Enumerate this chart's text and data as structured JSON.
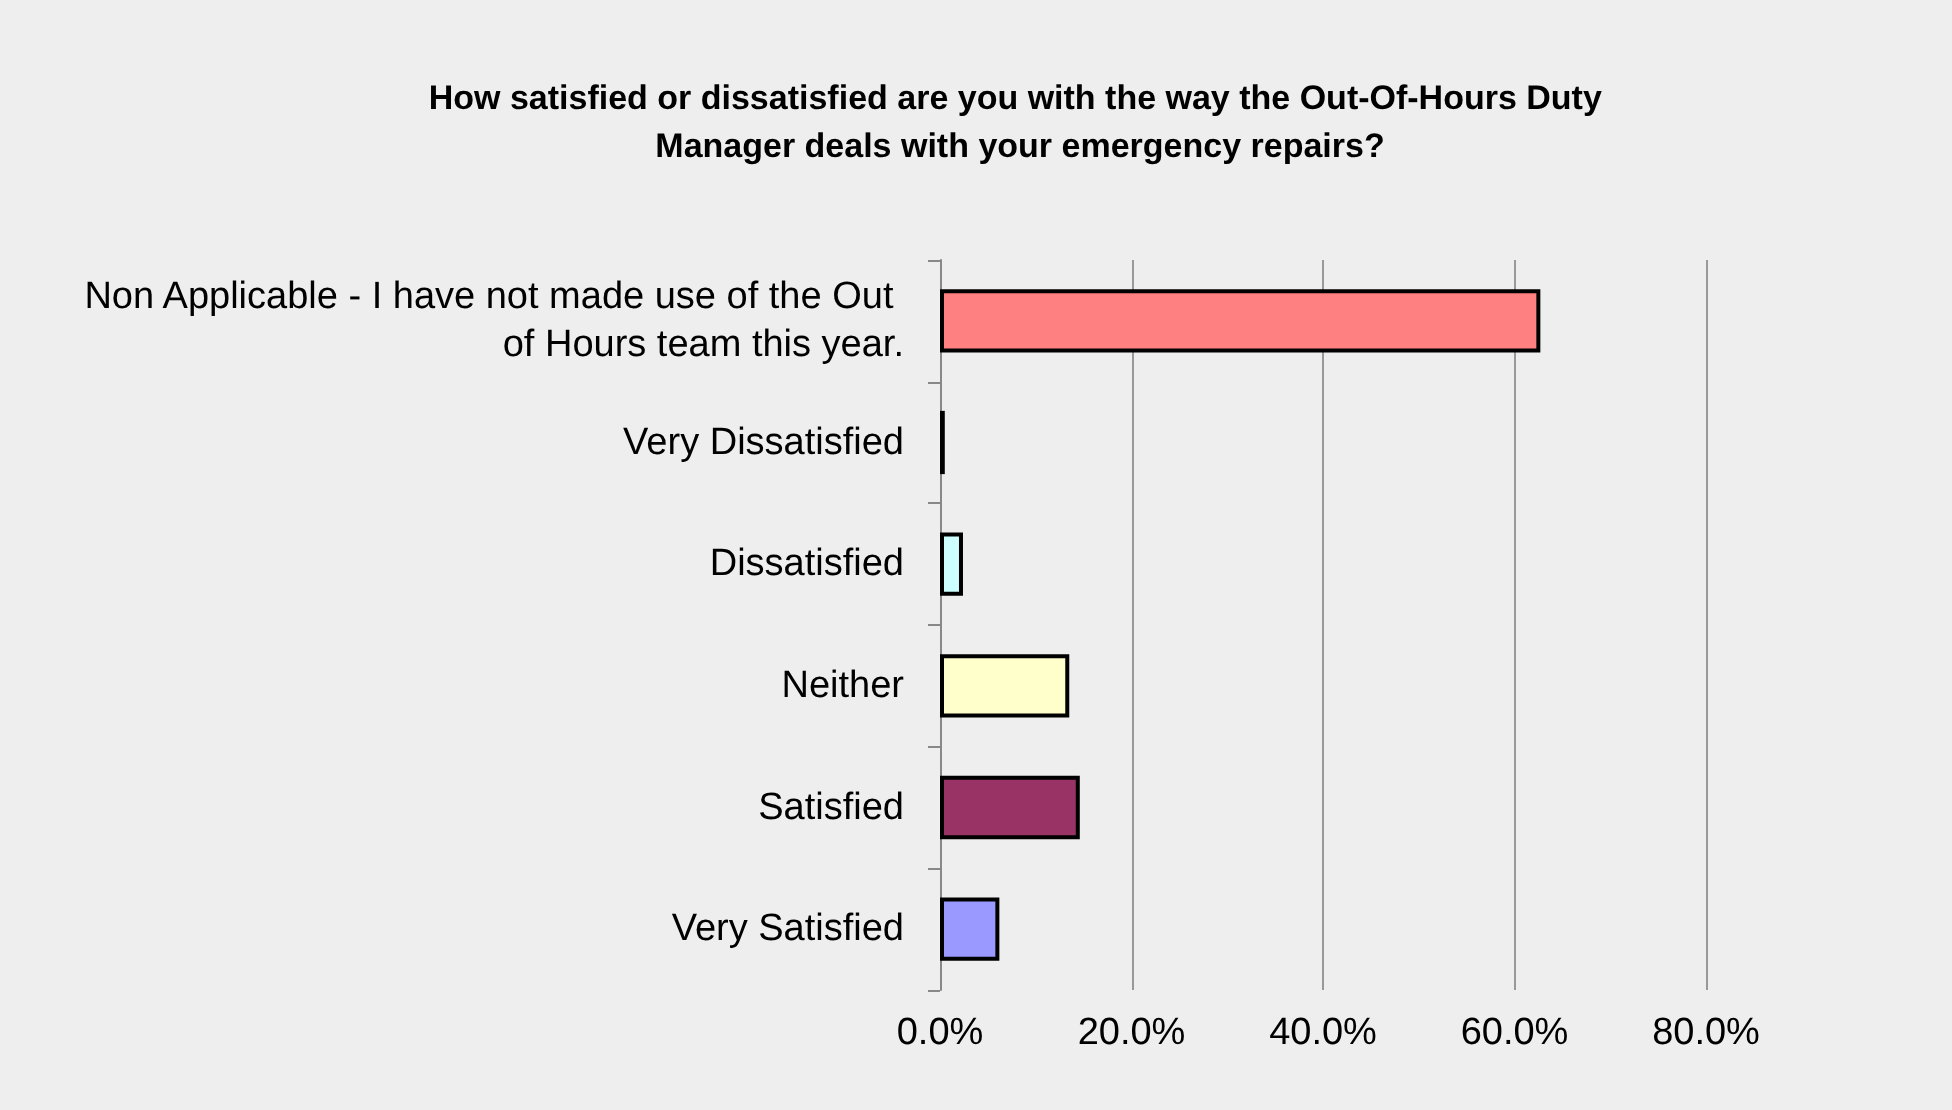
{
  "chart_data": {
    "type": "bar",
    "orientation": "horizontal",
    "title": "How satisfied or dissatisfied are you with the way the Out-Of-Hours Duty Manager deals with your emergency repairs?",
    "categories": [
      "Non Applicable - I have not made use of the Out of Hours team this year.",
      "Very Dissatisfied",
      "Dissatisfied",
      "Neither",
      "Satisfied",
      "Very Satisfied"
    ],
    "values": [
      62.7,
      0.5,
      2.4,
      13.5,
      14.6,
      6.2
    ],
    "colors": [
      "#ff8080",
      "#000000",
      "#ccffff",
      "#ffffcc",
      "#993366",
      "#9999ff"
    ],
    "xlim": [
      0,
      80
    ],
    "xticks": [
      {
        "value": 0,
        "label": "0.0%"
      },
      {
        "value": 20,
        "label": "20.0%"
      },
      {
        "value": 40,
        "label": "40.0%"
      },
      {
        "value": 60,
        "label": "60.0%"
      },
      {
        "value": 80,
        "label": "80.0%"
      }
    ],
    "grid": "x"
  }
}
